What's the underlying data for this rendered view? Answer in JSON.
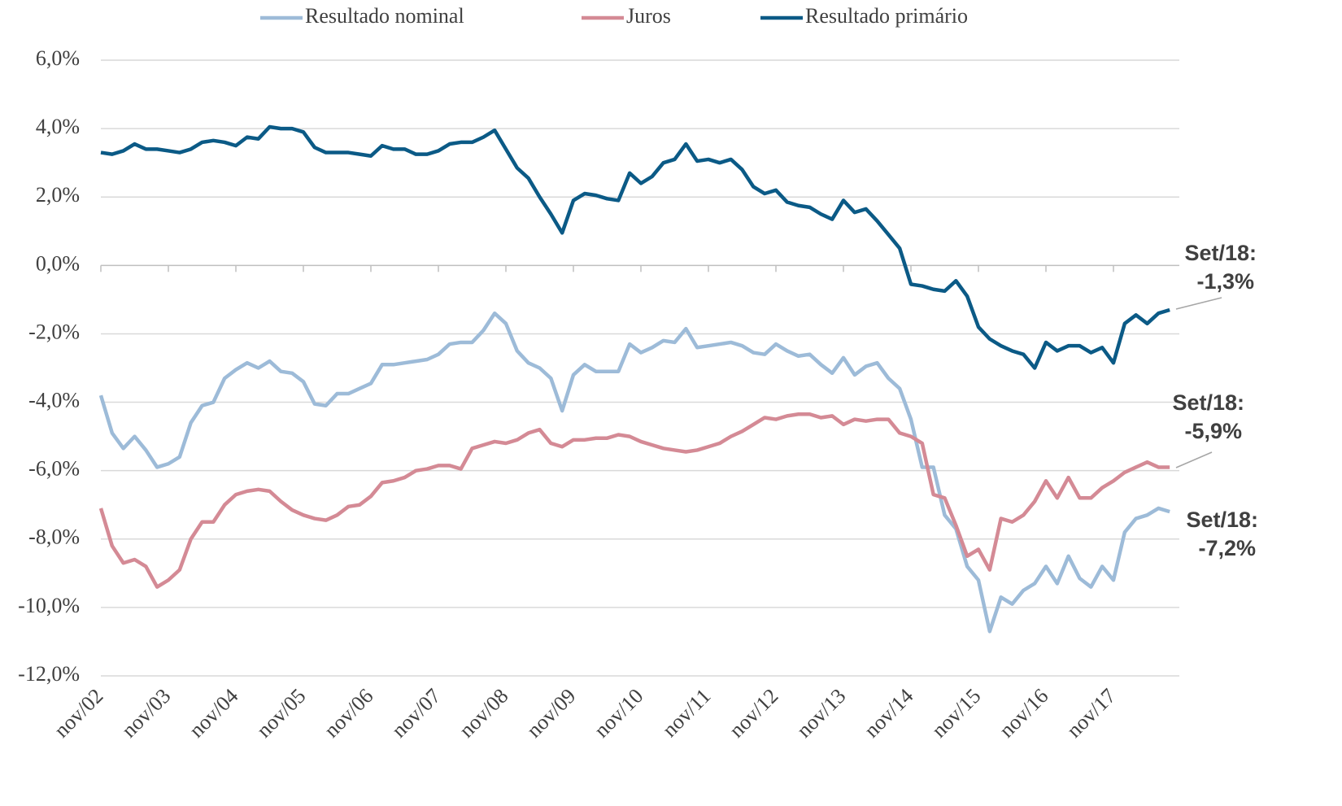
{
  "chart_data": {
    "type": "line",
    "categories": [
      "nov/02",
      null,
      null,
      null,
      null,
      null,
      "nov/03",
      null,
      null,
      null,
      null,
      null,
      "nov/04",
      null,
      null,
      null,
      null,
      null,
      "nov/05",
      null,
      null,
      null,
      null,
      null,
      "nov/06",
      null,
      null,
      null,
      null,
      null,
      "nov/07",
      null,
      null,
      null,
      null,
      null,
      "nov/08",
      null,
      null,
      null,
      null,
      null,
      "nov/09",
      null,
      null,
      null,
      null,
      null,
      "nov/10",
      null,
      null,
      null,
      null,
      null,
      "nov/11",
      null,
      null,
      null,
      null,
      null,
      "nov/12",
      null,
      null,
      null,
      null,
      null,
      "nov/13",
      null,
      null,
      null,
      null,
      null,
      "nov/14",
      null,
      null,
      null,
      null,
      null,
      "nov/15",
      null,
      null,
      null,
      null,
      null,
      "nov/16",
      null,
      null,
      null,
      null,
      null,
      "nov/17",
      null,
      null,
      null,
      null,
      null
    ],
    "series": [
      {
        "name": "Resultado nominal",
        "color": "#9dbbd8",
        "values": [
          -3.8,
          -4.9,
          -5.35,
          -5.0,
          -5.4,
          -5.9,
          -5.8,
          -5.6,
          -4.6,
          -4.1,
          -4.0,
          -3.3,
          -3.05,
          -2.85,
          -3.0,
          -2.8,
          -3.1,
          -3.15,
          -3.4,
          -4.05,
          -4.1,
          -3.75,
          -3.75,
          -3.6,
          -3.45,
          -2.9,
          -2.9,
          -2.85,
          -2.8,
          -2.75,
          -2.6,
          -2.3,
          -2.25,
          -2.25,
          -1.9,
          -1.4,
          -1.7,
          -2.5,
          -2.85,
          -3.0,
          -3.3,
          -4.25,
          -3.2,
          -2.9,
          -3.1,
          -3.1,
          -3.1,
          -2.3,
          -2.55,
          -2.4,
          -2.2,
          -2.25,
          -1.85,
          -2.4,
          -2.35,
          -2.3,
          -2.25,
          -2.35,
          -2.55,
          -2.6,
          -2.3,
          -2.5,
          -2.65,
          -2.6,
          -2.9,
          -3.15,
          -2.7,
          -3.2,
          -2.95,
          -2.85,
          -3.3,
          -3.6,
          -4.5,
          -5.9,
          -5.9,
          -7.3,
          -7.7,
          -8.8,
          -9.2,
          -10.7,
          -9.7,
          -9.9,
          -9.5,
          -9.3,
          -8.8,
          -9.3,
          -8.5,
          -9.15,
          -9.4,
          -8.8,
          -9.2,
          -7.8,
          -7.4,
          -7.3,
          -7.1,
          -7.2
        ]
      },
      {
        "name": "Juros",
        "color": "#d48a95",
        "values": [
          -7.1,
          -8.2,
          -8.7,
          -8.6,
          -8.8,
          -9.4,
          -9.2,
          -8.9,
          -8.0,
          -7.5,
          -7.5,
          -7.0,
          -6.7,
          -6.6,
          -6.55,
          -6.6,
          -6.9,
          -7.15,
          -7.3,
          -7.4,
          -7.45,
          -7.3,
          -7.05,
          -7.0,
          -6.75,
          -6.35,
          -6.3,
          -6.2,
          -6.0,
          -5.95,
          -5.85,
          -5.85,
          -5.95,
          -5.35,
          -5.25,
          -5.15,
          -5.2,
          -5.1,
          -4.9,
          -4.8,
          -5.2,
          -5.3,
          -5.1,
          -5.1,
          -5.05,
          -5.05,
          -4.95,
          -5.0,
          -5.15,
          -5.25,
          -5.35,
          -5.4,
          -5.45,
          -5.4,
          -5.3,
          -5.2,
          -5.0,
          -4.85,
          -4.65,
          -4.45,
          -4.5,
          -4.4,
          -4.35,
          -4.35,
          -4.45,
          -4.4,
          -4.65,
          -4.5,
          -4.55,
          -4.5,
          -4.5,
          -4.9,
          -5.0,
          -5.2,
          -6.7,
          -6.8,
          -7.6,
          -8.5,
          -8.3,
          -8.9,
          -7.4,
          -7.5,
          -7.3,
          -6.9,
          -6.3,
          -6.8,
          -6.2,
          -6.8,
          -6.8,
          -6.5,
          -6.3,
          -6.05,
          -5.9,
          -5.75,
          -5.9,
          -5.9
        ]
      },
      {
        "name": "Resultado primário",
        "color": "#0b5a86",
        "values": [
          3.3,
          3.25,
          3.35,
          3.55,
          3.4,
          3.4,
          3.35,
          3.3,
          3.4,
          3.6,
          3.65,
          3.6,
          3.5,
          3.75,
          3.7,
          4.05,
          4.0,
          4.0,
          3.9,
          3.45,
          3.3,
          3.3,
          3.3,
          3.25,
          3.2,
          3.5,
          3.4,
          3.4,
          3.25,
          3.25,
          3.35,
          3.55,
          3.6,
          3.6,
          3.75,
          3.95,
          3.4,
          2.85,
          2.55,
          2.0,
          1.5,
          0.95,
          1.9,
          2.1,
          2.05,
          1.95,
          1.9,
          2.7,
          2.4,
          2.6,
          3.0,
          3.1,
          3.55,
          3.05,
          3.1,
          3.0,
          3.1,
          2.8,
          2.3,
          2.1,
          2.2,
          1.85,
          1.75,
          1.7,
          1.5,
          1.35,
          1.9,
          1.55,
          1.65,
          1.3,
          0.9,
          0.5,
          -0.55,
          -0.6,
          -0.7,
          -0.75,
          -0.45,
          -0.9,
          -1.8,
          -2.15,
          -2.35,
          -2.5,
          -2.6,
          -3.0,
          -2.25,
          -2.5,
          -2.35,
          -2.35,
          -2.55,
          -2.4,
          -2.85,
          -1.7,
          -1.45,
          -1.7,
          -1.4,
          -1.3
        ]
      }
    ],
    "ylim": [
      -12,
      6
    ],
    "yticks": [
      {
        "value": -12,
        "label": "-12,0%"
      },
      {
        "value": -10,
        "label": "-10,0%"
      },
      {
        "value": -8,
        "label": "-8,0%"
      },
      {
        "value": -6,
        "label": "-6,0%"
      },
      {
        "value": -4,
        "label": "-4,0%"
      },
      {
        "value": -2,
        "label": "-2,0%"
      },
      {
        "value": 0,
        "label": "0,0%"
      },
      {
        "value": 2,
        "label": "2,0%"
      },
      {
        "value": 4,
        "label": "4,0%"
      },
      {
        "value": 6,
        "label": "6,0%"
      }
    ],
    "grid": true,
    "legend": "top",
    "annotations": [
      {
        "label": "Set/18:",
        "text": "-1,3%"
      },
      {
        "label": "Set/18:",
        "text": "-5,9%"
      },
      {
        "label": "Set/18:",
        "text": "-7,2%"
      }
    ]
  }
}
